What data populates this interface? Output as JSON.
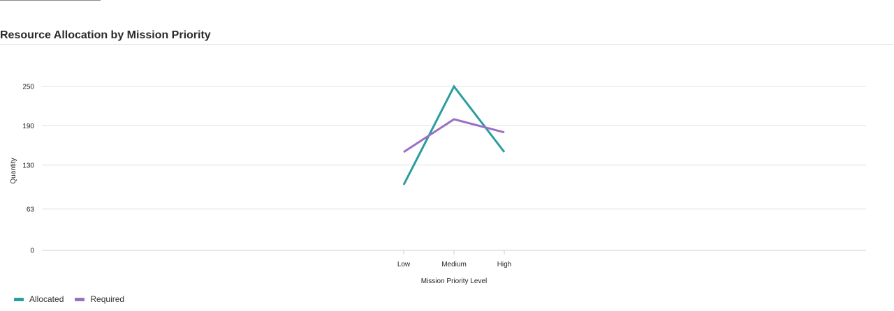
{
  "chart_data": {
    "type": "line",
    "title": "Resource Allocation by Mission Priority",
    "xlabel": "Mission Priority Level",
    "ylabel": "Quantity",
    "categories": [
      "Low",
      "Medium",
      "High"
    ],
    "y_ticks": [
      0,
      63,
      130,
      190,
      250
    ],
    "ylim": [
      0,
      250
    ],
    "grid": true,
    "legend_position": "bottom-left",
    "series": [
      {
        "name": "Allocated",
        "color": "#2a9d9f",
        "values": [
          100,
          250,
          150
        ]
      },
      {
        "name": "Required",
        "color": "#9b6fc4",
        "values": [
          150,
          200,
          180
        ]
      }
    ]
  }
}
